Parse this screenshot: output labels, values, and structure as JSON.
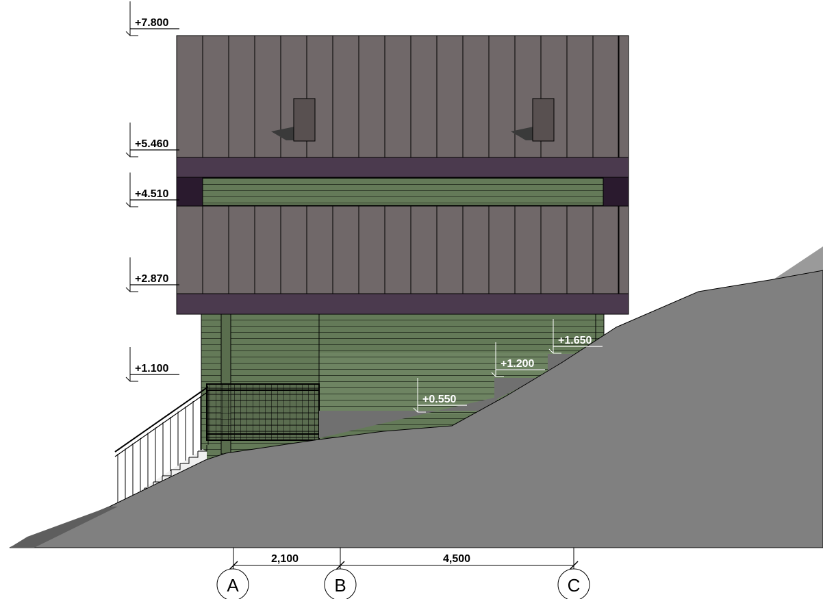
{
  "levels_left": [
    {
      "id": "lvl-7800",
      "label": "+7.800"
    },
    {
      "id": "lvl-5460",
      "label": "+5.460"
    },
    {
      "id": "lvl-4510",
      "label": "+4.510"
    },
    {
      "id": "lvl-2870",
      "label": "+2.870"
    },
    {
      "id": "lvl-1100",
      "label": "+1.100"
    }
  ],
  "levels_terrain": [
    {
      "id": "lvl-1650",
      "label": "+1.650"
    },
    {
      "id": "lvl-1200",
      "label": "+1.200"
    },
    {
      "id": "lvl-0550",
      "label": "+0.550"
    }
  ],
  "dimensions": [
    {
      "id": "dim-ab",
      "label": "2,100"
    },
    {
      "id": "dim-bc",
      "label": "4,500"
    }
  ],
  "axes": [
    {
      "id": "axis-a",
      "label": "A"
    },
    {
      "id": "axis-b",
      "label": "B"
    },
    {
      "id": "axis-c",
      "label": "C"
    }
  ],
  "colors": {
    "cladding": "#706869",
    "band": "#4b3a4e",
    "band_dark": "#2a1a2e",
    "siding": "#647a58",
    "siding_line": "#2e3a28",
    "terrain": "#808080",
    "line": "#000000",
    "label_white": "#ffffff"
  }
}
